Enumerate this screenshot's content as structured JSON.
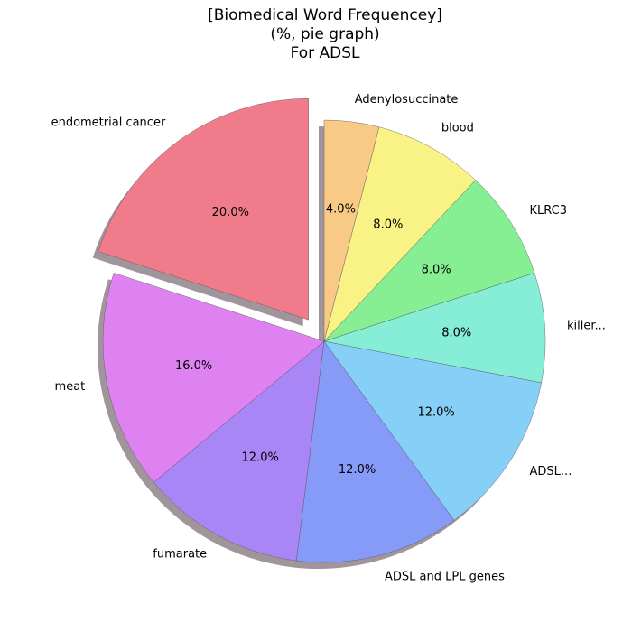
{
  "chart_data": {
    "type": "pie",
    "title_lines": [
      "[Biomedical Word Frequencey]",
      "(%, pie graph)",
      "For ADSL"
    ],
    "start_angle_deg": 90,
    "direction": "counterclockwise",
    "shadow": true,
    "slices": [
      {
        "label": "endometrial cancer",
        "value": 20.0,
        "pct_text": "20.0%",
        "color": "#f07b8a",
        "exploded": true
      },
      {
        "label": "meat",
        "value": 16.0,
        "pct_text": "16.0%",
        "color": "#de82f2",
        "exploded": false
      },
      {
        "label": "fumarate",
        "value": 12.0,
        "pct_text": "12.0%",
        "color": "#a986f5",
        "exploded": false
      },
      {
        "label": "ADSL and LPL genes",
        "value": 12.0,
        "pct_text": "12.0%",
        "color": "#869af7",
        "exploded": false
      },
      {
        "label": "ADSL...",
        "value": 12.0,
        "pct_text": "12.0%",
        "color": "#86cff7",
        "exploded": false
      },
      {
        "label": "killer...",
        "value": 8.0,
        "pct_text": "8.0%",
        "color": "#86eed7",
        "exploded": false
      },
      {
        "label": "KLRC3",
        "value": 8.0,
        "pct_text": "8.0%",
        "color": "#86ee93",
        "exploded": false
      },
      {
        "label": "blood",
        "value": 8.0,
        "pct_text": "8.0%",
        "color": "#f9f386",
        "exploded": false
      },
      {
        "label": "Adenylosuccinate",
        "value": 4.0,
        "pct_text": "4.0%",
        "color": "#f8ca86",
        "exploded": false
      }
    ]
  }
}
